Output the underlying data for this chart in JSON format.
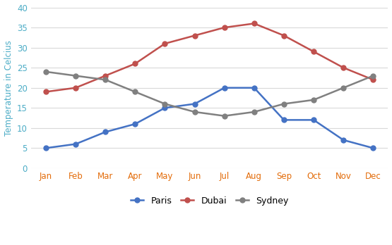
{
  "months": [
    "Jan",
    "Feb",
    "Mar",
    "Apr",
    "May",
    "Jun",
    "Jul",
    "Aug",
    "Sep",
    "Oct",
    "Nov",
    "Dec"
  ],
  "paris": [
    5,
    6,
    9,
    11,
    15,
    16,
    20,
    20,
    12,
    12,
    7,
    5
  ],
  "dubai": [
    19,
    20,
    23,
    26,
    31,
    33,
    35,
    36,
    33,
    29,
    25,
    22
  ],
  "sydney": [
    24,
    23,
    22,
    19,
    16,
    14,
    13,
    14,
    16,
    17,
    20,
    23
  ],
  "paris_color": "#4472C4",
  "dubai_color": "#C0504D",
  "sydney_color": "#808080",
  "xticklabel_color": "#E36C0A",
  "yticklabel_color": "#4BACC6",
  "ylabel": "Temperature in Celcius",
  "ylabel_color": "#4BACC6",
  "ylim": [
    0,
    40
  ],
  "yticks": [
    0,
    5,
    10,
    15,
    20,
    25,
    30,
    35,
    40
  ],
  "grid_color": "#D9D9D9",
  "background_color": "#FFFFFF",
  "legend_labels": [
    "Paris",
    "Dubai",
    "Sydney"
  ],
  "marker": "o",
  "linewidth": 1.8,
  "markersize": 5
}
